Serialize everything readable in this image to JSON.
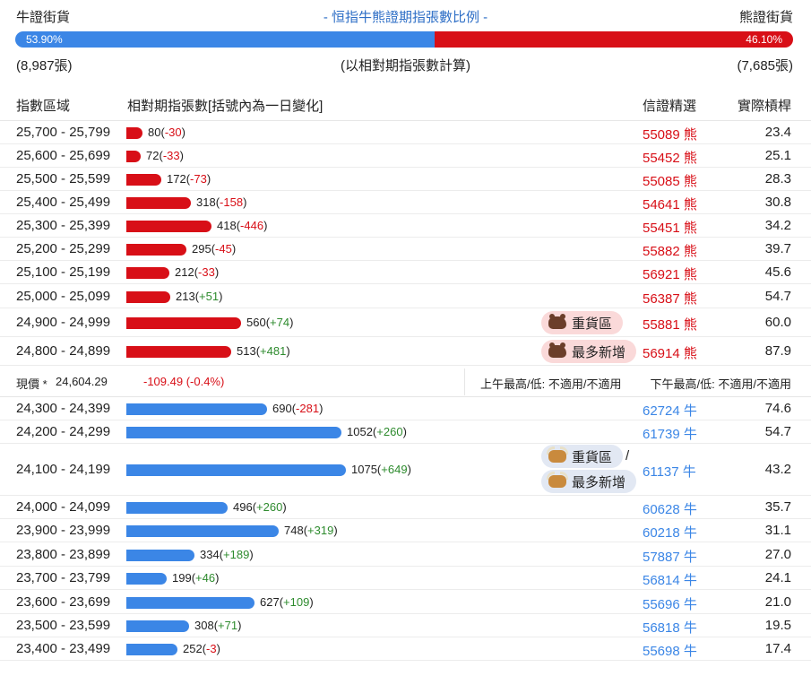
{
  "header": {
    "left_title": "牛證街貨",
    "center_title": "- 恒指牛熊證期指張數比例 -",
    "right_title": "熊證街貨",
    "bull_pct": "53.90%",
    "bear_pct": "46.10%",
    "bull_ratio": 0.539,
    "bull_count": "(8,987張)",
    "basis_note": "(以相對期指張數計算)",
    "bear_count": "(7,685張)",
    "colors": {
      "bull": "#3b86e6",
      "bear": "#d80f17",
      "positive": "#2e8b2e"
    }
  },
  "columns": {
    "range": "指數區域",
    "contracts": "相對期指張數[括號內為一日變化]",
    "pick": "信證精選",
    "leverage": "實際槓桿"
  },
  "bar_scale_max": 1075,
  "bear_rows": [
    {
      "range": "25,700 - 25,799",
      "count": "80",
      "change": "-30",
      "code": "55089 熊",
      "leverage": "23.4"
    },
    {
      "range": "25,600 - 25,699",
      "count": "72",
      "change": "-33",
      "code": "55452 熊",
      "leverage": "25.1"
    },
    {
      "range": "25,500 - 25,599",
      "count": "172",
      "change": "-73",
      "code": "55085 熊",
      "leverage": "28.3"
    },
    {
      "range": "25,400 - 25,499",
      "count": "318",
      "change": "-158",
      "code": "54641 熊",
      "leverage": "30.8"
    },
    {
      "range": "25,300 - 25,399",
      "count": "418",
      "change": "-446",
      "code": "55451 熊",
      "leverage": "34.2"
    },
    {
      "range": "25,200 - 25,299",
      "count": "295",
      "change": "-45",
      "code": "55882 熊",
      "leverage": "39.7"
    },
    {
      "range": "25,100 - 25,199",
      "count": "212",
      "change": "-33",
      "code": "56921 熊",
      "leverage": "45.6"
    },
    {
      "range": "25,000 - 25,099",
      "count": "213",
      "change": "+51",
      "code": "56387 熊",
      "leverage": "54.7"
    },
    {
      "range": "24,900 - 24,999",
      "count": "560",
      "change": "+74",
      "code": "55881 熊",
      "leverage": "60.0",
      "tag": "重貨區"
    },
    {
      "range": "24,800 - 24,899",
      "count": "513",
      "change": "+481",
      "code": "56914 熊",
      "leverage": "87.9",
      "tag": "最多新增"
    }
  ],
  "current": {
    "label": "現價 *",
    "price": "24,604.29",
    "change": "-109.49 (-0.4%)",
    "am_range": "上午最高/低: 不適用/不適用",
    "pm_range": "下午最高/低: 不適用/不適用"
  },
  "bull_rows": [
    {
      "range": "24,300 - 24,399",
      "count": "690",
      "change": "-281",
      "code": "62724 牛",
      "leverage": "74.6"
    },
    {
      "range": "24,200 - 24,299",
      "count": "1052",
      "change": "+260",
      "code": "61739 牛",
      "leverage": "54.7"
    },
    {
      "range": "24,100 - 24,199",
      "count": "1075",
      "change": "+649",
      "code": "61137 牛",
      "leverage": "43.2",
      "tag": "重貨區",
      "tag2": "最多新增",
      "slash": "/"
    },
    {
      "range": "24,000 - 24,099",
      "count": "496",
      "change": "+260",
      "code": "60628 牛",
      "leverage": "35.7"
    },
    {
      "range": "23,900 - 23,999",
      "count": "748",
      "change": "+319",
      "code": "60218 牛",
      "leverage": "31.1"
    },
    {
      "range": "23,800 - 23,899",
      "count": "334",
      "change": "+189",
      "code": "57887 牛",
      "leverage": "27.0"
    },
    {
      "range": "23,700 - 23,799",
      "count": "199",
      "change": "+46",
      "code": "56814 牛",
      "leverage": "24.1"
    },
    {
      "range": "23,600 - 23,699",
      "count": "627",
      "change": "+109",
      "code": "55696 牛",
      "leverage": "21.0"
    },
    {
      "range": "23,500 - 23,599",
      "count": "308",
      "change": "+71",
      "code": "56818 牛",
      "leverage": "19.5"
    },
    {
      "range": "23,400 - 23,499",
      "count": "252",
      "change": "-3",
      "code": "55698 牛",
      "leverage": "17.4"
    }
  ]
}
